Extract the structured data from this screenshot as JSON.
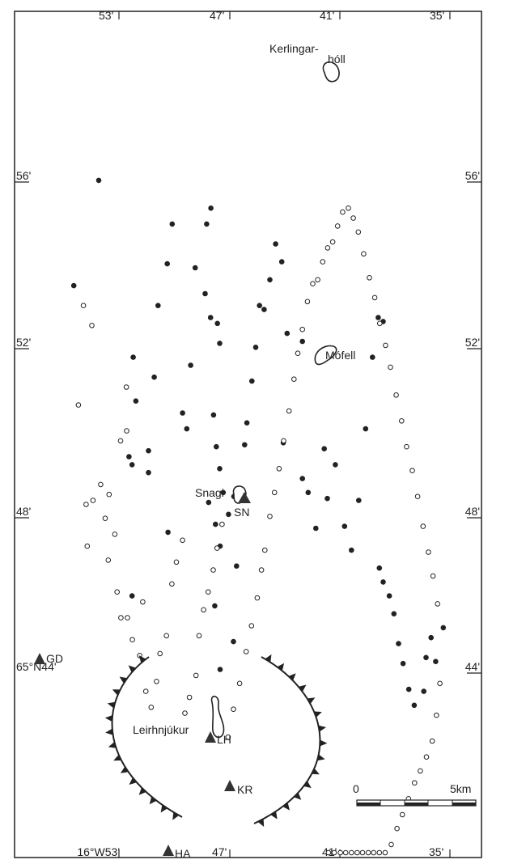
{
  "ticks": {
    "top": [
      "53'",
      "47'",
      "41'",
      "35'"
    ],
    "left": [
      "56'",
      "52'",
      "48'"
    ],
    "right": [
      "56'",
      "52'",
      "48'",
      "44'"
    ],
    "bottom_start": "16°W53'",
    "bottom": [
      "47'",
      "41'",
      "35'"
    ],
    "corner": "65°N44'"
  },
  "places": {
    "kerlingarholl_1": "Kerlingar-",
    "kerlingarholl_2": "hóll",
    "mofell": "Mófell",
    "snagi": "Snagi",
    "leirhnjukur": "Leirhnjúkur"
  },
  "stations": [
    "GD",
    "SN",
    "LH",
    "KR",
    "HA"
  ],
  "scale": {
    "zero": "0",
    "end": "5km"
  },
  "events": {
    "filled": [
      [
        0.14,
        0.028
      ],
      [
        0.226,
        0.172
      ],
      [
        0.087,
        0.093
      ],
      [
        0.23,
        0.18
      ],
      [
        0.296,
        0.18
      ],
      [
        0.198,
        0.19
      ],
      [
        0.176,
        0.183
      ],
      [
        0.223,
        0.223
      ],
      [
        0.234,
        0.223
      ],
      [
        0.186,
        0.238
      ],
      [
        0.15,
        0.248
      ],
      [
        0.129,
        0.272
      ],
      [
        0.109,
        0.285
      ],
      [
        0.264,
        0.274
      ],
      [
        0.204,
        0.312
      ],
      [
        0.212,
        0.323
      ],
      [
        0.18,
        0.333
      ],
      [
        0.131,
        0.345
      ],
      [
        0.144,
        0.371
      ],
      [
        0.109,
        0.375
      ],
      [
        0.101,
        0.386
      ],
      [
        0.156,
        0.385
      ],
      [
        0.159,
        0.403
      ],
      [
        0.169,
        0.409
      ],
      [
        0.205,
        0.393
      ],
      [
        0.221,
        0.4
      ],
      [
        0.249,
        0.38
      ],
      [
        0.301,
        0.396
      ],
      [
        0.232,
        0.409
      ],
      [
        0.244,
        0.418
      ],
      [
        0.26,
        0.398
      ],
      [
        0.271,
        0.41
      ],
      [
        0.333,
        0.41
      ],
      [
        0.319,
        0.445
      ],
      [
        0.281,
        0.453
      ],
      [
        0.255,
        0.432
      ],
      [
        0.246,
        0.446
      ],
      [
        0.243,
        0.463
      ],
      [
        0.22,
        0.474
      ],
      [
        0.209,
        0.48
      ],
      [
        0.188,
        0.493
      ],
      [
        0.171,
        0.503
      ],
      [
        0.152,
        0.525
      ],
      [
        0.15,
        0.513
      ],
      [
        0.137,
        0.54
      ],
      [
        0.164,
        0.585
      ],
      [
        0.119,
        0.555
      ],
      [
        0.128,
        0.571
      ],
      [
        0.219,
        0.575
      ],
      [
        0.168,
        0.625
      ],
      [
        0.237,
        0.625
      ],
      [
        0.244,
        0.64
      ],
      [
        0.262,
        0.66
      ],
      [
        0.222,
        0.682
      ],
      [
        0.247,
        0.69
      ],
      [
        0.23,
        0.711
      ],
      [
        0.261,
        0.735
      ],
      [
        0.273,
        0.753
      ],
      [
        0.248,
        0.772
      ],
      [
        0.212,
        0.79
      ],
      [
        0.176,
        0.808
      ],
      [
        0.156,
        0.823
      ],
      [
        0.158,
        0.836
      ],
      [
        0.282,
        0.826
      ],
      [
        0.289,
        0.836
      ],
      [
        0.296,
        0.852
      ],
      [
        0.305,
        0.864
      ],
      [
        0.32,
        0.876
      ],
      [
        0.33,
        0.888
      ],
      [
        0.343,
        0.903
      ],
      [
        0.351,
        0.917
      ],
      [
        0.344,
        0.942
      ],
      [
        0.327,
        0.948
      ],
      [
        0.317,
        0.961
      ],
      [
        0.329,
        0.973
      ],
      [
        0.312,
        0.993
      ]
    ],
    "open": [
      [
        0.15,
        0.053
      ],
      [
        0.2,
        0.04
      ],
      [
        0.16,
        0.075
      ],
      [
        0.24,
        0.098
      ],
      [
        0.248,
        0.078
      ],
      [
        0.25,
        0.06
      ],
      [
        0.271,
        0.063
      ],
      [
        0.257,
        0.11
      ],
      [
        0.278,
        0.118
      ],
      [
        0.245,
        0.12
      ],
      [
        0.265,
        0.135
      ],
      [
        0.294,
        0.141
      ],
      [
        0.307,
        0.151
      ],
      [
        0.218,
        0.15
      ],
      [
        0.213,
        0.166
      ],
      [
        0.191,
        0.165
      ],
      [
        0.307,
        0.168
      ],
      [
        0.318,
        0.181
      ],
      [
        0.326,
        0.2
      ],
      [
        0.299,
        0.208
      ],
      [
        0.344,
        0.216
      ],
      [
        0.352,
        0.23
      ],
      [
        0.339,
        0.244
      ],
      [
        0.325,
        0.253
      ],
      [
        0.316,
        0.27
      ],
      [
        0.29,
        0.284
      ],
      [
        0.279,
        0.296
      ],
      [
        0.268,
        0.312
      ],
      [
        0.355,
        0.318
      ],
      [
        0.347,
        0.33
      ],
      [
        0.336,
        0.347
      ],
      [
        0.316,
        0.355
      ],
      [
        0.303,
        0.367
      ],
      [
        0.294,
        0.379
      ],
      [
        0.283,
        0.392
      ],
      [
        0.272,
        0.402
      ],
      [
        0.26,
        0.415
      ],
      [
        0.367,
        0.431
      ],
      [
        0.353,
        0.445
      ],
      [
        0.34,
        0.461
      ],
      [
        0.324,
        0.478
      ],
      [
        0.311,
        0.492
      ],
      [
        0.297,
        0.507
      ],
      [
        0.283,
        0.518
      ],
      [
        0.273,
        0.527
      ],
      [
        0.256,
        0.54
      ],
      [
        0.244,
        0.552
      ],
      [
        0.232,
        0.564
      ],
      [
        0.218,
        0.576
      ],
      [
        0.203,
        0.59
      ],
      [
        0.187,
        0.603
      ],
      [
        0.174,
        0.613
      ],
      [
        0.162,
        0.625
      ],
      [
        0.148,
        0.638
      ],
      [
        0.139,
        0.652
      ],
      [
        0.137,
        0.665
      ],
      [
        0.128,
        0.678
      ],
      [
        0.121,
        0.691
      ],
      [
        0.118,
        0.704
      ],
      [
        0.11,
        0.717
      ],
      [
        0.103,
        0.73
      ],
      [
        0.101,
        0.745
      ],
      [
        0.106,
        0.758
      ],
      [
        0.113,
        0.771
      ],
      [
        0.124,
        0.785
      ],
      [
        0.136,
        0.8
      ],
      [
        0.146,
        0.814
      ],
      [
        0.159,
        0.827
      ],
      [
        0.17,
        0.842
      ],
      [
        0.181,
        0.855
      ],
      [
        0.195,
        0.87
      ],
      [
        0.208,
        0.884
      ],
      [
        0.221,
        0.897
      ],
      [
        0.233,
        0.912
      ],
      [
        0.246,
        0.926
      ],
      [
        0.261,
        0.94
      ],
      [
        0.274,
        0.954
      ],
      [
        0.286,
        0.966
      ],
      [
        0.3,
        0.978
      ],
      [
        0.34,
        0.984
      ],
      [
        0.356,
        0.975
      ],
      [
        0.369,
        0.964
      ],
      [
        0.377,
        0.949
      ],
      [
        0.384,
        0.933
      ],
      [
        0.39,
        0.918
      ],
      [
        0.398,
        0.902
      ],
      [
        0.406,
        0.886
      ],
      [
        0.413,
        0.872
      ],
      [
        0.421,
        0.857
      ],
      [
        0.429,
        0.841
      ],
      [
        0.436,
        0.826
      ],
      [
        0.443,
        0.811
      ],
      [
        0.449,
        0.797
      ],
      [
        0.453,
        0.782
      ],
      [
        0.456,
        0.768
      ],
      [
        0.459,
        0.753
      ],
      [
        0.462,
        0.738
      ],
      [
        0.465,
        0.724
      ],
      [
        0.47,
        0.708
      ],
      [
        0.473,
        0.693
      ]
    ]
  },
  "colors": {
    "ink": "#222222",
    "paper": "#ffffff"
  }
}
